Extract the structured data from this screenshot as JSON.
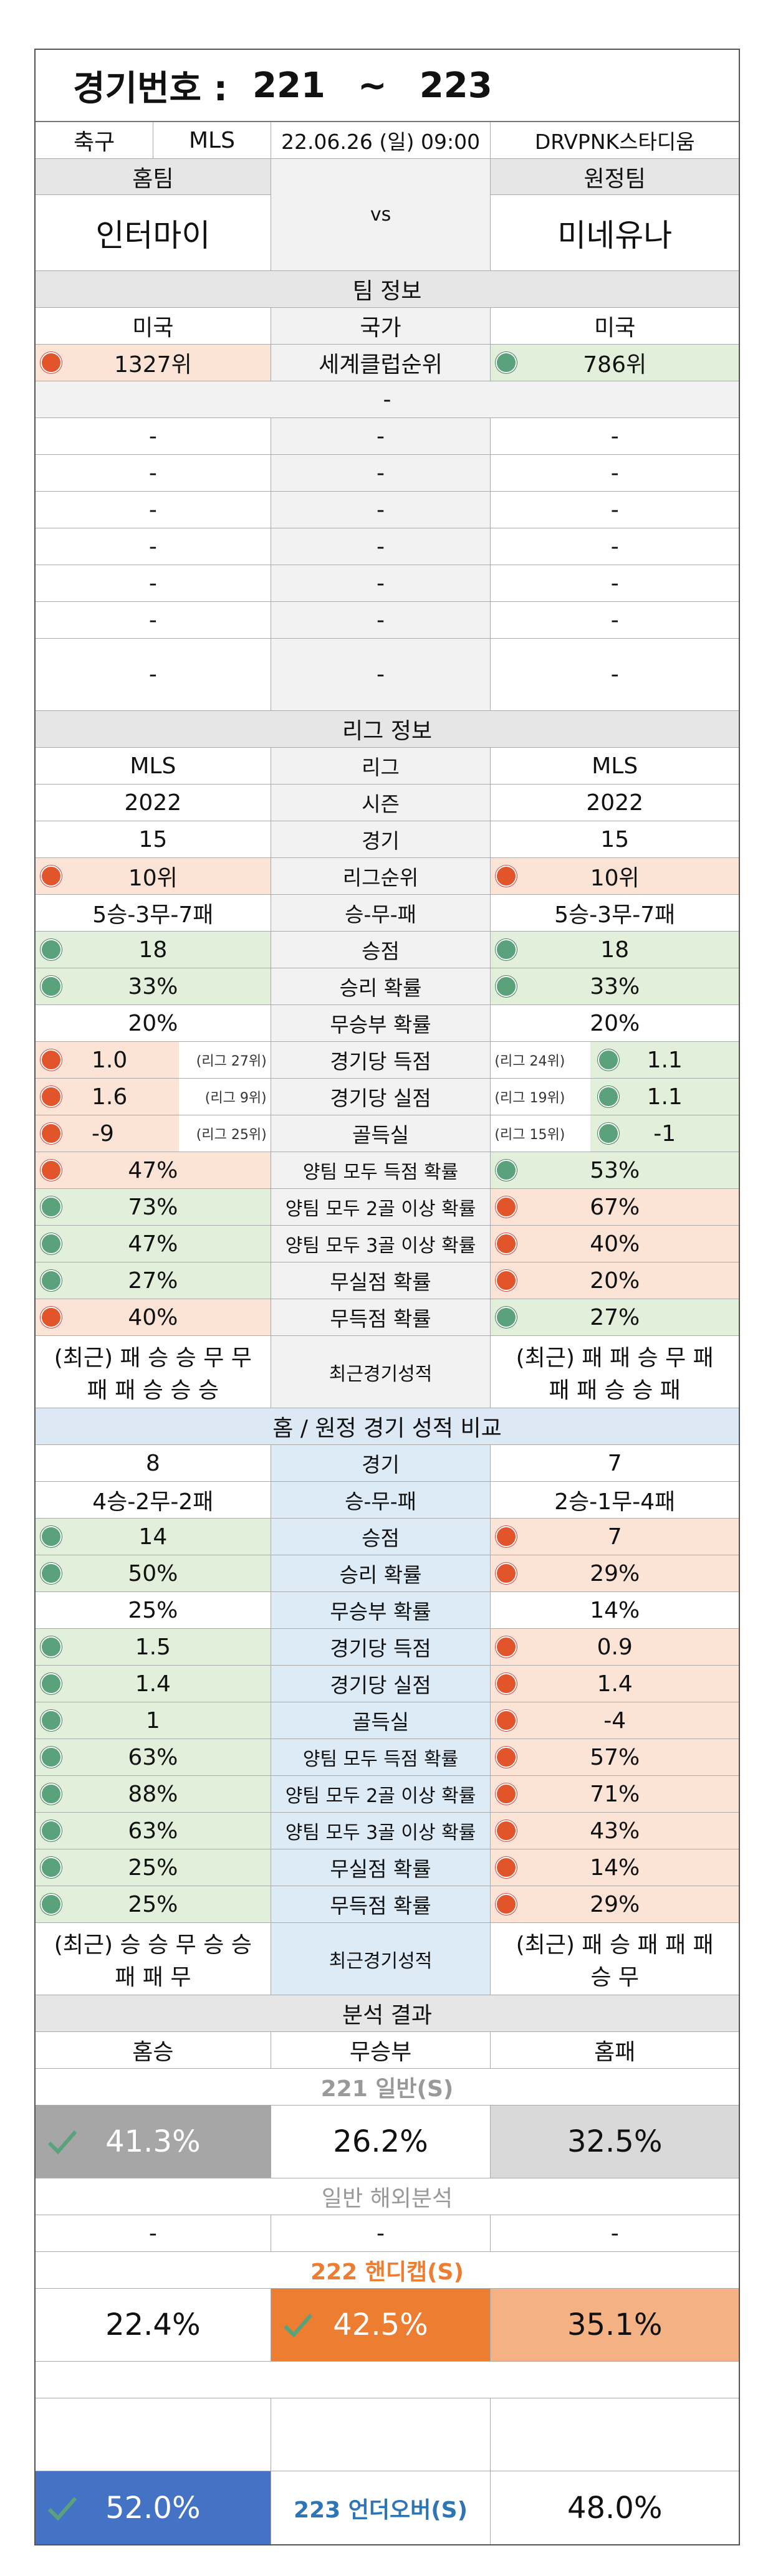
{
  "header": {
    "label": "경기번호 :",
    "from": "221",
    "tilde": "~",
    "to": "223"
  },
  "match": {
    "sport": "축구",
    "league": "MLS",
    "datetime": "22.06.26 (일) 09:00",
    "venue": "DRVPNK스타디움"
  },
  "teams": {
    "home_label": "홈팀",
    "away_label": "원정팀",
    "vs": "vs",
    "home": "인터마이",
    "away": "미네유나"
  },
  "team_info": {
    "title": "팀 정보",
    "country": {
      "home": "미국",
      "label": "국가",
      "away": "미국"
    },
    "club_rank": {
      "home": "1327위",
      "label": "세계클럽순위",
      "away": "786위"
    },
    "dash": "-"
  },
  "league_info": {
    "title": "리그 정보",
    "rows": [
      {
        "home": "MLS",
        "label": "리그",
        "away": "MLS"
      },
      {
        "home": "2022",
        "label": "시즌",
        "away": "2022"
      },
      {
        "home": "15",
        "label": "경기",
        "away": "15"
      },
      {
        "home": "10위",
        "label": "리그순위",
        "away": "10위"
      },
      {
        "home": "5승-3무-7패",
        "label": "승-무-패",
        "away": "5승-3무-7패"
      },
      {
        "home": "18",
        "label": "승점",
        "away": "18"
      },
      {
        "home": "33%",
        "label": "승리 확률",
        "away": "33%"
      },
      {
        "home": "20%",
        "label": "무승부 확률",
        "away": "20%"
      },
      {
        "home": "1.0",
        "home_note": "(리그 27위)",
        "label": "경기당 득점",
        "away_note": "(리그 24위)",
        "away": "1.1"
      },
      {
        "home": "1.6",
        "home_note": "(리그 9위)",
        "label": "경기당 실점",
        "away_note": "(리그 19위)",
        "away": "1.1"
      },
      {
        "home": "-9",
        "home_note": "(리그 25위)",
        "label": "골득실",
        "away_note": "(리그 15위)",
        "away": "-1"
      },
      {
        "home": "47%",
        "label": "양팀 모두 득점 확률",
        "away": "53%"
      },
      {
        "home": "73%",
        "label": "양팀 모두 2골 이상 확률",
        "away": "67%"
      },
      {
        "home": "47%",
        "label": "양팀 모두 3골 이상 확률",
        "away": "40%"
      },
      {
        "home": "27%",
        "label": "무실점 확률",
        "away": "20%"
      },
      {
        "home": "40%",
        "label": "무득점 확률",
        "away": "27%"
      }
    ],
    "recent": {
      "home1": "(최근) 패 승 승 무 무",
      "home2": "패 패 승 승 승",
      "label": "최근경기성적",
      "away1": "(최근) 패 패 승 무 패",
      "away2": "패 패 승 승 패"
    }
  },
  "homeaway": {
    "title": "홈 / 원정 경기 성적 비교",
    "rows": [
      {
        "home": "8",
        "label": "경기",
        "away": "7"
      },
      {
        "home": "4승-2무-2패",
        "label": "승-무-패",
        "away": "2승-1무-4패"
      },
      {
        "home": "14",
        "label": "승점",
        "away": "7"
      },
      {
        "home": "50%",
        "label": "승리 확률",
        "away": "29%"
      },
      {
        "home": "25%",
        "label": "무승부 확률",
        "away": "14%"
      },
      {
        "home": "1.5",
        "label": "경기당 득점",
        "away": "0.9"
      },
      {
        "home": "1.4",
        "label": "경기당 실점",
        "away": "1.4"
      },
      {
        "home": "1",
        "label": "골득실",
        "away": "-4"
      },
      {
        "home": "63%",
        "label": "양팀 모두 득점 확률",
        "away": "57%"
      },
      {
        "home": "88%",
        "label": "양팀 모두 2골 이상 확률",
        "away": "71%"
      },
      {
        "home": "63%",
        "label": "양팀 모두 3골 이상 확률",
        "away": "43%"
      },
      {
        "home": "25%",
        "label": "무실점 확률",
        "away": "14%"
      },
      {
        "home": "25%",
        "label": "무득점 확률",
        "away": "29%"
      }
    ],
    "recent": {
      "home1": "(최근) 승 승 무 승 승",
      "home2": "패 패 무",
      "label": "최근경기성적",
      "away1": "(최근) 패 승 패 패 패",
      "away2": "승 무"
    }
  },
  "analysis": {
    "title": "분석 결과",
    "cols": {
      "home": "홈승",
      "draw": "무승부",
      "away": "홈패"
    },
    "general_title": "221 일반(S)",
    "general": {
      "home": "41.3%",
      "draw": "26.2%",
      "away": "32.5%"
    },
    "overseas_title": "일반 해외분석",
    "overseas": {
      "home": "-",
      "draw": "-",
      "away": "-"
    },
    "handicap_title": "222 핸디캡(S)",
    "handicap": {
      "home": "22.4%",
      "draw": "42.5%",
      "away": "35.1%"
    },
    "underover_title": "223 언더오버(S)",
    "underover": {
      "over": "52.0%",
      "under": "48.0%"
    }
  },
  "colors": {
    "red": "#e2552a",
    "green": "#5aa27c",
    "orange": "#ed7d31",
    "blue": "#4472c4"
  }
}
